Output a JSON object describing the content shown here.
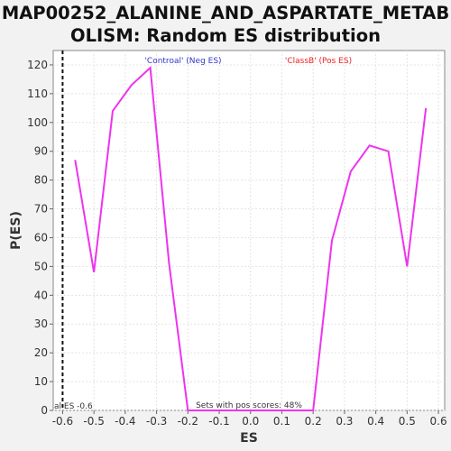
{
  "title_line1": "MAP00252_ALANINE_AND_ASPARTATE_METAB",
  "title_line2": "OLISM: Random ES distribution",
  "chart_data": {
    "type": "line",
    "xlabel": "ES",
    "ylabel": "P(ES)",
    "xlim": [
      -0.63,
      0.62
    ],
    "ylim": [
      0,
      125
    ],
    "xticks": [
      -0.6,
      -0.5,
      -0.4,
      -0.3,
      -0.2,
      -0.1,
      0.0,
      0.1,
      0.2,
      0.3,
      0.4,
      0.5,
      0.6
    ],
    "xtick_labels": [
      "-0.6",
      "-0.5",
      "-0.4",
      "-0.3",
      "-0.2",
      "-0.1",
      "0.0",
      "0.1",
      "0.2",
      "0.3",
      "0.4",
      "0.5",
      "0.6"
    ],
    "yticks": [
      0,
      10,
      20,
      30,
      40,
      50,
      60,
      70,
      80,
      90,
      100,
      110,
      120
    ],
    "grid": true,
    "series": [
      {
        "color": "#ee33ee",
        "x": [
          -0.56,
          -0.5,
          -0.44,
          -0.38,
          -0.32,
          -0.26,
          -0.2,
          -0.14,
          -0.08,
          -0.02,
          0.04,
          0.1,
          0.15,
          0.2,
          0.26,
          0.32,
          0.38,
          0.44,
          0.5,
          0.56
        ],
        "y": [
          87,
          48,
          104,
          113,
          119,
          51,
          0,
          0,
          0,
          0,
          0,
          0,
          0,
          0,
          59,
          83,
          92,
          90,
          50,
          105
        ]
      }
    ],
    "actual_es": -0.6,
    "actual_es_label": "al ES -0.6",
    "neg_label": "'Controal' (Neg ES)",
    "pos_label": "'ClassB' (Pos ES)",
    "neg_color": "#3333cc",
    "pos_color": "#ee2222",
    "pos_scores_label": "Sets with pos scores: 48%"
  }
}
